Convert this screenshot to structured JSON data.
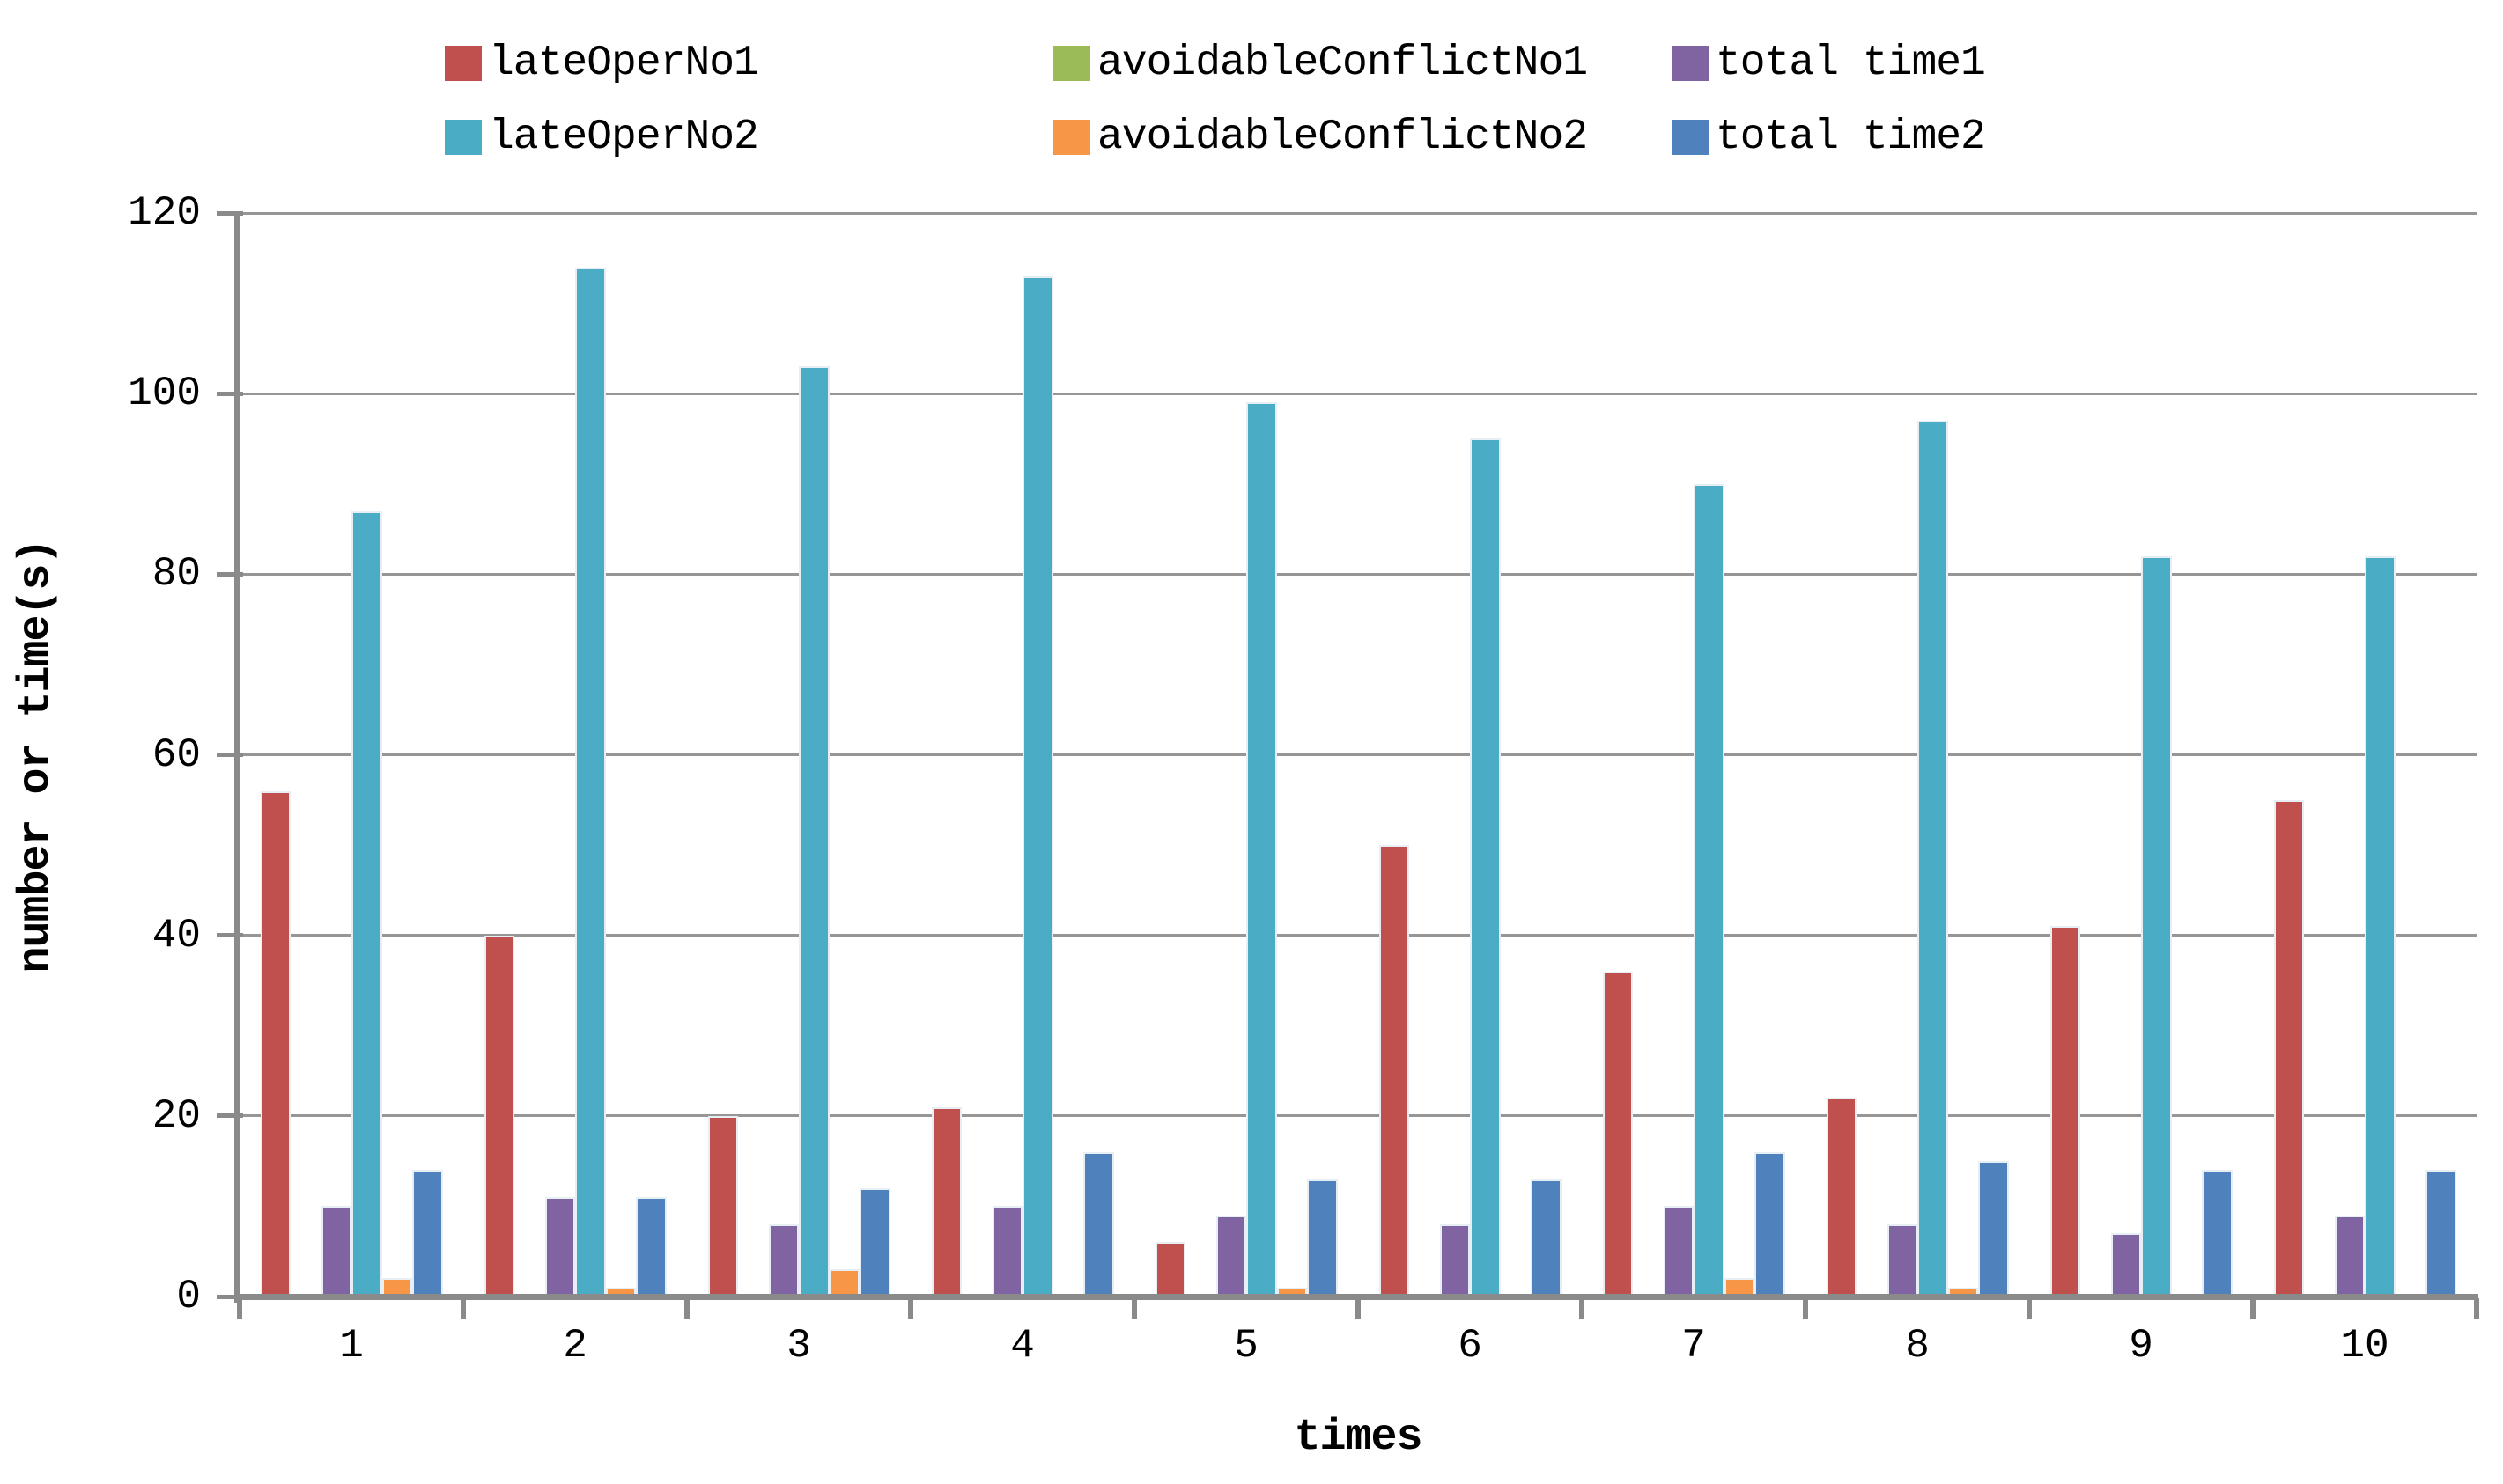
{
  "chart_data": {
    "type": "bar",
    "title": "",
    "xlabel": "times",
    "ylabel": "number or time(s)",
    "categories": [
      "1",
      "2",
      "3",
      "4",
      "5",
      "6",
      "7",
      "8",
      "9",
      "10"
    ],
    "ylim": [
      0,
      120
    ],
    "ytick_step": 20,
    "grid": true,
    "legend_position": "top",
    "series": [
      {
        "name": "lateOperNo1",
        "color": "#C0504D",
        "values": [
          56,
          40,
          20,
          21,
          6,
          50,
          36,
          22,
          41,
          55
        ]
      },
      {
        "name": "avoidableConflictNo1",
        "color": "#9BBB59",
        "values": [
          0,
          0,
          0,
          0,
          0,
          0,
          0,
          0,
          0,
          0
        ]
      },
      {
        "name": "total time1",
        "color": "#8064A2",
        "values": [
          10,
          11,
          8,
          10,
          9,
          8,
          10,
          8,
          7,
          9
        ]
      },
      {
        "name": "lateOperNo2",
        "color": "#4BACC6",
        "values": [
          87,
          114,
          103,
          113,
          99,
          95,
          90,
          97,
          82,
          82
        ]
      },
      {
        "name": "avoidableConflictNo2",
        "color": "#F79646",
        "values": [
          2,
          1,
          3,
          0,
          1,
          0,
          2,
          1,
          0,
          0
        ]
      },
      {
        "name": "total time2",
        "color": "#4F81BD",
        "values": [
          14,
          11,
          12,
          16,
          13,
          13,
          16,
          15,
          14,
          14
        ]
      }
    ],
    "legend_rows": [
      [
        0,
        1,
        2
      ],
      [
        3,
        4,
        5
      ]
    ],
    "axis_color": "#8a8a8a",
    "gridline_color": "#969696"
  }
}
